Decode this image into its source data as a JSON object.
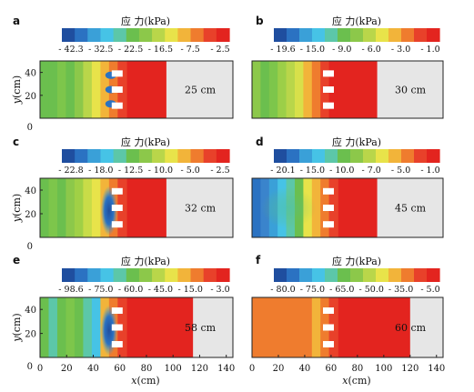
{
  "chart_data": [
    {
      "panel": "a",
      "type": "heatmap",
      "colorbar_title": "应 力(kPa)",
      "colorbar_ticks": [
        "-42.3",
        "-32.5",
        "-22.5",
        "-16.5",
        "-7.5",
        "-2.5"
      ],
      "annotation": "25 cm",
      "ylabel": "y(cm)",
      "yticks": [
        "40",
        "20",
        "0"
      ],
      "fill_x_cm": 95,
      "wall_x_cm": 58,
      "stable_stress_kPa": -2.5,
      "xlim": [
        0,
        145
      ],
      "ylim": [
        0,
        50
      ]
    },
    {
      "panel": "b",
      "type": "heatmap",
      "colorbar_title": "应 力(kPa)",
      "colorbar_ticks": [
        "-19.6",
        "-15.0",
        "-9.0",
        "-6.0",
        "-3.0",
        "-1.0"
      ],
      "annotation": "30 cm",
      "fill_x_cm": 95,
      "wall_x_cm": 58,
      "stable_stress_kPa": -1.0,
      "xlim": [
        0,
        145
      ],
      "ylim": [
        0,
        50
      ]
    },
    {
      "panel": "c",
      "type": "heatmap",
      "colorbar_title": "应 力(kPa)",
      "colorbar_ticks": [
        "-22.8",
        "-18.0",
        "-12.5",
        "-10.0",
        "-5.0",
        "-2.5"
      ],
      "annotation": "32 cm",
      "ylabel": "y(cm)",
      "yticks": [
        "40",
        "20",
        "0"
      ],
      "fill_x_cm": 95,
      "wall_x_cm": 58,
      "stable_stress_kPa": -2.5,
      "xlim": [
        0,
        145
      ],
      "ylim": [
        0,
        50
      ]
    },
    {
      "panel": "d",
      "type": "heatmap",
      "colorbar_title": "应 力(kPa)",
      "colorbar_ticks": [
        "-20.1",
        "-15.0",
        "-10.0",
        "-7.0",
        "-5.0",
        "-1.0"
      ],
      "annotation": "45 cm",
      "fill_x_cm": 95,
      "wall_x_cm": 58,
      "stable_stress_kPa": -1.0,
      "xlim": [
        0,
        145
      ],
      "ylim": [
        0,
        50
      ]
    },
    {
      "panel": "e",
      "type": "heatmap",
      "colorbar_title": "应 力(kPa)",
      "colorbar_ticks": [
        "-98.6",
        "-75.0",
        "-60.0",
        "-45.0",
        "-15.0",
        "-3.0"
      ],
      "annotation": "58 cm",
      "ylabel": "y(cm)",
      "yticks": [
        "40",
        "20",
        "0"
      ],
      "xlabel": "x(cm)",
      "xticks": [
        "0",
        "20",
        "40",
        "60",
        "80",
        "100",
        "120",
        "140"
      ],
      "fill_x_cm": 115,
      "wall_x_cm": 58,
      "stable_stress_kPa": -3.0,
      "xlim": [
        0,
        145
      ],
      "ylim": [
        0,
        50
      ]
    },
    {
      "panel": "f",
      "type": "heatmap",
      "colorbar_title": "应 力(kPa)",
      "colorbar_ticks": [
        "-80.0",
        "-75.0",
        "-65.0",
        "-50.0",
        "-35.0",
        "-5.0"
      ],
      "annotation": "60 cm",
      "xlabel": "x(cm)",
      "xticks": [
        "0",
        "20",
        "40",
        "60",
        "80",
        "100",
        "120",
        "140"
      ],
      "fill_x_cm": 120,
      "wall_x_cm": 58,
      "stable_stress_kPa": -5.0,
      "xlim": [
        0,
        145
      ],
      "ylim": [
        0,
        50
      ]
    }
  ],
  "colors": {
    "scale": [
      "#1f4e9f",
      "#2b72c2",
      "#3aa0d8",
      "#46c3e6",
      "#5cc7a8",
      "#6bbf4e",
      "#8cc84a",
      "#b9d64a",
      "#e8e34a",
      "#f2b43a",
      "#ef7c2e",
      "#e8412a",
      "#e3241f"
    ],
    "background_fill": "#e6e6e6",
    "wall_block": "#ffffff"
  }
}
